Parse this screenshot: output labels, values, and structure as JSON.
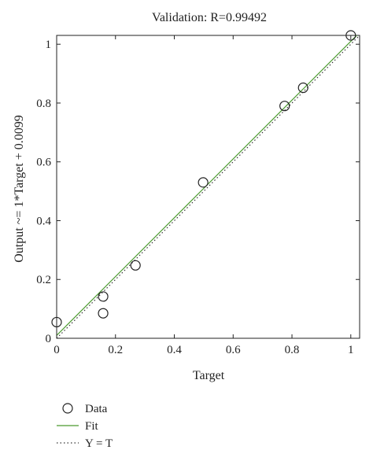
{
  "chart_data": {
    "type": "scatter",
    "title": "Validation: R=0.99492",
    "xlabel": "Target",
    "ylabel": "Output ~= 1*Target + 0.0099",
    "xlim": [
      0,
      1.03
    ],
    "ylim": [
      0,
      1.03
    ],
    "x_ticks": [
      0,
      0.2,
      0.4,
      0.6,
      0.8,
      1
    ],
    "y_ticks": [
      0,
      0.2,
      0.4,
      0.6,
      0.8,
      1
    ],
    "x_tick_labels": [
      "0",
      "0.2",
      "0.4",
      "0.6",
      "0.8",
      "1"
    ],
    "y_tick_labels": [
      "0",
      "0.2",
      "0.4",
      "0.6",
      "0.8",
      "1"
    ],
    "grid": false,
    "legend_position": "bottom-left, below plot",
    "series": [
      {
        "name": "Data",
        "kind": "markers",
        "marker": "open-circle",
        "color": "#222222",
        "points": [
          {
            "x": 0.0,
            "y": 0.055
          },
          {
            "x": 0.158,
            "y": 0.142
          },
          {
            "x": 0.158,
            "y": 0.085
          },
          {
            "x": 0.268,
            "y": 0.248
          },
          {
            "x": 0.498,
            "y": 0.53
          },
          {
            "x": 0.775,
            "y": 0.79
          },
          {
            "x": 0.838,
            "y": 0.852
          },
          {
            "x": 1.0,
            "y": 1.03
          }
        ]
      },
      {
        "name": "Fit",
        "kind": "line",
        "style": "solid",
        "color": "#4a9a2e",
        "slope": 1.0,
        "intercept": 0.0099
      },
      {
        "name": "Y = T",
        "kind": "line",
        "style": "dotted",
        "color": "#333333",
        "slope": 1.0,
        "intercept": 0.0
      }
    ]
  }
}
